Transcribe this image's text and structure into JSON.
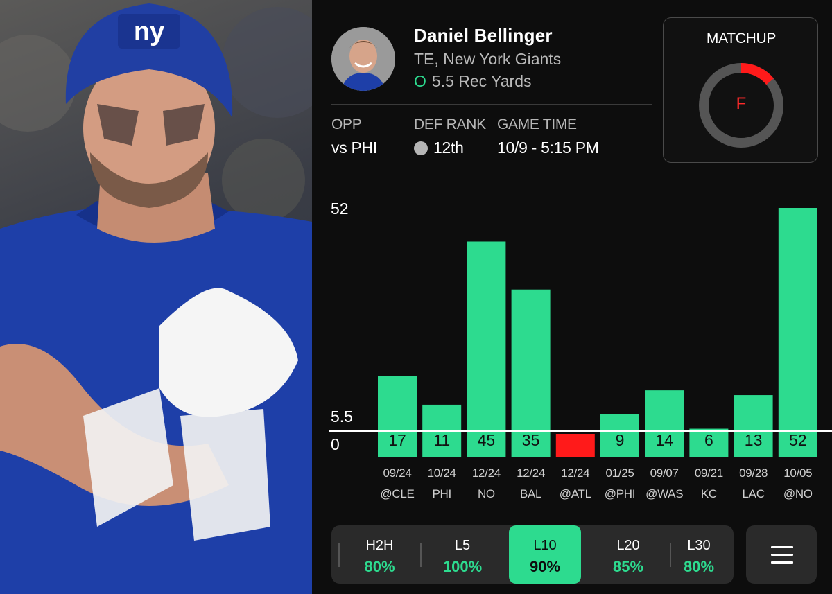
{
  "player": {
    "name": "Daniel Bellinger",
    "position_team": "TE, New York Giants",
    "prop_ou": "O",
    "prop": "5.5 Rec Yards"
  },
  "info": {
    "opp_label": "OPP",
    "opp_value": "vs PHI",
    "def_rank_label": "DEF RANK",
    "def_rank_value": "12th",
    "game_time_label": "GAME TIME",
    "game_time_value": "10/9 - 5:15 PM"
  },
  "matchup": {
    "title": "MATCHUP",
    "grade": "F",
    "ring_fraction": 0.14,
    "ring_color": "#ff1a1a",
    "track_color": "#555555"
  },
  "chart_data": {
    "type": "bar",
    "y_top_label": "52",
    "line_label": "5.5",
    "zero_label": "0",
    "line_value": 5.5,
    "ylim": [
      0,
      52
    ],
    "categories": [
      "09/24\n@CLE",
      "10/24\nPHI",
      "12/24\nNO",
      "12/24\nBAL",
      "12/24\n@ATL",
      "01/25\n@PHI",
      "09/07\n@WAS",
      "09/21\nKC",
      "09/28\nLAC",
      "10/05\n@NO"
    ],
    "dates": [
      "09/24",
      "10/24",
      "12/24",
      "12/24",
      "12/24",
      "01/25",
      "09/07",
      "09/21",
      "09/28",
      "10/05"
    ],
    "opponents": [
      "@CLE",
      "PHI",
      "NO",
      "BAL",
      "@ATL",
      "@PHI",
      "@WAS",
      "KC",
      "LAC",
      "@NO"
    ],
    "values": [
      17,
      11,
      45,
      35,
      0,
      9,
      14,
      6,
      13,
      52
    ],
    "value_labels": [
      "17",
      "11",
      "45",
      "35",
      "",
      "9",
      "14",
      "6",
      "13",
      "52"
    ],
    "colors": {
      "over": "#2ddb8f",
      "under": "#ff1a1a"
    }
  },
  "tabs": [
    {
      "label": "H2H",
      "pct": "80%"
    },
    {
      "label": "L5",
      "pct": "100%"
    },
    {
      "label": "L10",
      "pct": "90%",
      "active": true
    },
    {
      "label": "L20",
      "pct": "85%"
    },
    {
      "label": "L30",
      "pct": "80%"
    }
  ],
  "icons": {
    "menu": "hamburger-menu-icon",
    "def_rank_dot": "gray-circle-icon"
  }
}
